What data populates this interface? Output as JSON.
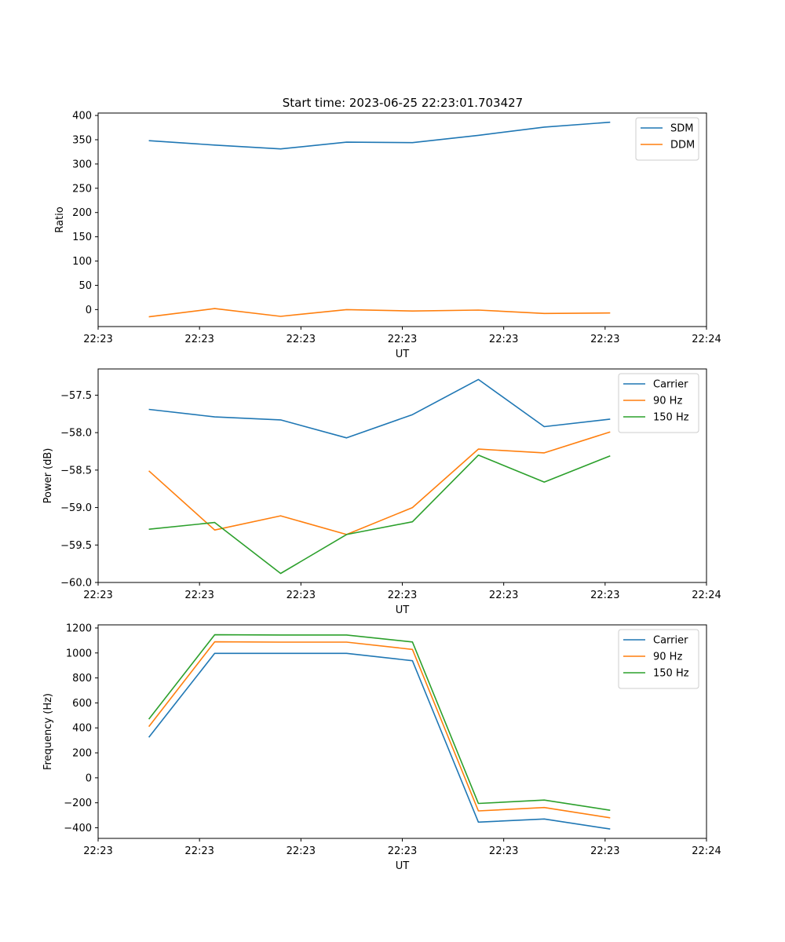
{
  "title": "Start time: 2023-06-25 22:23:01.703427",
  "colors": {
    "blue": "#1f77b4",
    "orange": "#ff7f0e",
    "green": "#2ca02c"
  },
  "chart_data": [
    {
      "type": "line",
      "title": "Start time: 2023-06-25 22:23:01.703427",
      "xlabel": "UT",
      "ylabel": "Ratio",
      "x_unit": "seconds after 22:23:00",
      "xlim": [
        0,
        60
      ],
      "x_ticks": [
        {
          "value": 0,
          "label": "22:23"
        },
        {
          "value": 10,
          "label": "22:23"
        },
        {
          "value": 20,
          "label": "22:23"
        },
        {
          "value": 30,
          "label": "22:23"
        },
        {
          "value": 40,
          "label": "22:23"
        },
        {
          "value": 50,
          "label": "22:23"
        },
        {
          "value": 60,
          "label": "22:24"
        }
      ],
      "ylim": [
        -35,
        405
      ],
      "y_ticks": [
        {
          "value": 0,
          "label": "0"
        },
        {
          "value": 50,
          "label": "50"
        },
        {
          "value": 100,
          "label": "100"
        },
        {
          "value": 150,
          "label": "150"
        },
        {
          "value": 200,
          "label": "200"
        },
        {
          "value": 250,
          "label": "250"
        },
        {
          "value": 300,
          "label": "300"
        },
        {
          "value": 350,
          "label": "350"
        },
        {
          "value": 400,
          "label": "400"
        }
      ],
      "grid": false,
      "legend_position": "upper right",
      "x": [
        5.0,
        11.5,
        18.0,
        24.5,
        31.0,
        37.5,
        44.0,
        50.5
      ],
      "series": [
        {
          "name": "SDM",
          "color": "#1f77b4",
          "values": [
            348,
            339,
            331,
            345,
            344,
            359,
            376,
            386
          ]
        },
        {
          "name": "DDM",
          "color": "#ff7f0e",
          "values": [
            -15,
            2,
            -14,
            0,
            -3,
            -1,
            -8,
            -7
          ]
        }
      ]
    },
    {
      "type": "line",
      "xlabel": "UT",
      "ylabel": "Power (dB)",
      "x_unit": "seconds after 22:23:00",
      "xlim": [
        0,
        60
      ],
      "x_ticks": [
        {
          "value": 0,
          "label": "22:23"
        },
        {
          "value": 10,
          "label": "22:23"
        },
        {
          "value": 20,
          "label": "22:23"
        },
        {
          "value": 30,
          "label": "22:23"
        },
        {
          "value": 40,
          "label": "22:23"
        },
        {
          "value": 50,
          "label": "22:23"
        },
        {
          "value": 60,
          "label": "22:24"
        }
      ],
      "ylim": [
        -60.0,
        -57.15
      ],
      "y_ticks": [
        {
          "value": -60.0,
          "label": "−60.0"
        },
        {
          "value": -59.5,
          "label": "−59.5"
        },
        {
          "value": -59.0,
          "label": "−59.0"
        },
        {
          "value": -58.5,
          "label": "−58.5"
        },
        {
          "value": -58.0,
          "label": "−58.0"
        },
        {
          "value": -57.5,
          "label": "−57.5"
        }
      ],
      "grid": false,
      "legend_position": "upper right",
      "x": [
        5.0,
        11.5,
        18.0,
        24.5,
        31.0,
        37.5,
        44.0,
        50.5
      ],
      "series": [
        {
          "name": "Carrier",
          "color": "#1f77b4",
          "values": [
            -57.69,
            -57.79,
            -57.83,
            -58.07,
            -57.76,
            -57.29,
            -57.92,
            -57.82
          ]
        },
        {
          "name": "90 Hz",
          "color": "#ff7f0e",
          "values": [
            -58.51,
            -59.3,
            -59.11,
            -59.36,
            -59.0,
            -58.22,
            -58.27,
            -57.99
          ]
        },
        {
          "name": "150 Hz",
          "color": "#2ca02c",
          "values": [
            -59.29,
            -59.2,
            -59.88,
            -59.36,
            -59.19,
            -58.3,
            -58.66,
            -58.31
          ]
        }
      ]
    },
    {
      "type": "line",
      "xlabel": "UT",
      "ylabel": "Frequency (Hz)",
      "x_unit": "seconds after 22:23:00",
      "xlim": [
        0,
        60
      ],
      "x_ticks": [
        {
          "value": 0,
          "label": "22:23"
        },
        {
          "value": 10,
          "label": "22:23"
        },
        {
          "value": 20,
          "label": "22:23"
        },
        {
          "value": 30,
          "label": "22:23"
        },
        {
          "value": 40,
          "label": "22:23"
        },
        {
          "value": 50,
          "label": "22:23"
        },
        {
          "value": 60,
          "label": "22:24"
        }
      ],
      "ylim": [
        -485,
        1225
      ],
      "y_ticks": [
        {
          "value": -400,
          "label": "−400"
        },
        {
          "value": -200,
          "label": "−200"
        },
        {
          "value": 0,
          "label": "0"
        },
        {
          "value": 200,
          "label": "200"
        },
        {
          "value": 400,
          "label": "400"
        },
        {
          "value": 600,
          "label": "600"
        },
        {
          "value": 800,
          "label": "800"
        },
        {
          "value": 1000,
          "label": "1000"
        },
        {
          "value": 1200,
          "label": "1200"
        }
      ],
      "grid": false,
      "legend_position": "upper right",
      "x": [
        5.0,
        11.5,
        18.0,
        24.5,
        31.0,
        37.5,
        44.0,
        50.5
      ],
      "series": [
        {
          "name": "Carrier",
          "color": "#1f77b4",
          "values": [
            325,
            997,
            997,
            997,
            938,
            -355,
            -330,
            -410
          ]
        },
        {
          "name": "90 Hz",
          "color": "#ff7f0e",
          "values": [
            410,
            1089,
            1087,
            1087,
            1028,
            -265,
            -238,
            -320
          ]
        },
        {
          "name": "150 Hz",
          "color": "#2ca02c",
          "values": [
            470,
            1146,
            1144,
            1144,
            1088,
            -205,
            -178,
            -260
          ]
        }
      ]
    }
  ]
}
